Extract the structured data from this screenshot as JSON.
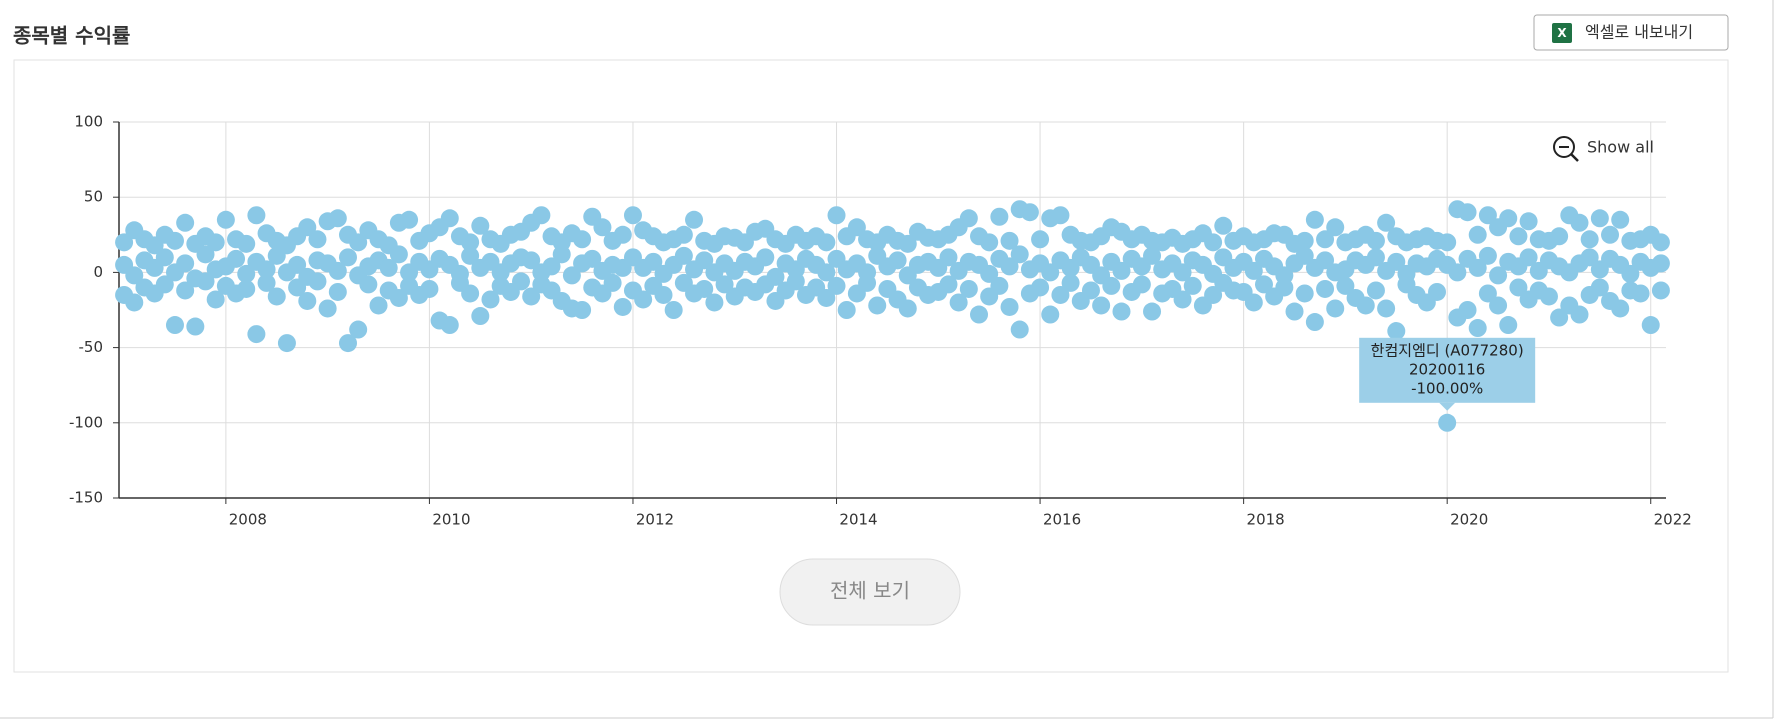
{
  "header": {
    "title": "종목별 수익률",
    "export_button": "엑셀로 내보내기"
  },
  "chart_data": {
    "type": "scatter",
    "x": [
      2007,
      2007.1,
      2007.2,
      2007.3,
      2007.4,
      2007.5,
      2007.6,
      2007.7,
      2007.8,
      2007.9,
      2008,
      2008.1,
      2008.2,
      2008.3,
      2008.4,
      2008.5,
      2008.6,
      2008.7,
      2008.8,
      2008.9,
      2009,
      2009.1,
      2009.2,
      2009.3,
      2009.4,
      2009.5,
      2009.6,
      2009.7,
      2009.8,
      2009.9,
      2010,
      2010.1,
      2010.2,
      2010.3,
      2010.4,
      2010.5,
      2010.6,
      2010.7,
      2010.8,
      2010.9,
      2011,
      2011.1,
      2011.2,
      2011.3,
      2011.4,
      2011.5,
      2011.6,
      2011.7,
      2011.8,
      2011.9,
      2012,
      2012.1,
      2012.2,
      2012.3,
      2012.4,
      2012.5,
      2012.6,
      2012.7,
      2012.8,
      2012.9,
      2013,
      2013.1,
      2013.2,
      2013.3,
      2013.4,
      2013.5,
      2013.6,
      2013.7,
      2013.8,
      2013.9,
      2014,
      2014.1,
      2014.2,
      2014.3,
      2014.4,
      2014.5,
      2014.6,
      2014.7,
      2014.8,
      2014.9,
      2015,
      2015.1,
      2015.2,
      2015.3,
      2015.4,
      2015.5,
      2015.6,
      2015.7,
      2015.8,
      2015.9,
      2016,
      2016.1,
      2016.2,
      2016.3,
      2016.4,
      2016.5,
      2016.6,
      2016.7,
      2016.8,
      2016.9,
      2017,
      2017.1,
      2017.2,
      2017.3,
      2017.4,
      2017.5,
      2017.6,
      2017.7,
      2017.8,
      2017.9,
      2018,
      2018.1,
      2018.2,
      2018.3,
      2018.4,
      2018.5,
      2018.6,
      2018.7,
      2018.8,
      2018.9,
      2019,
      2019.1,
      2019.2,
      2019.3,
      2019.4,
      2019.5,
      2019.6,
      2019.7,
      2019.8,
      2019.9,
      2020,
      2020.1,
      2020.2,
      2020.3,
      2020.4,
      2020.5,
      2020.6,
      2020.7,
      2020.8,
      2020.9,
      2021,
      2021.1,
      2021.2,
      2021.3,
      2021.4,
      2021.5,
      2021.6,
      2021.7,
      2021.8,
      2021.9,
      2022,
      2022.1
    ],
    "series": [
      {
        "color": "#8ac8e6",
        "values": [
          20,
          28,
          22,
          18,
          25,
          21,
          33,
          19,
          24,
          20,
          35,
          22,
          19,
          38,
          26,
          21,
          18,
          24,
          30,
          22,
          34,
          36,
          25,
          20,
          28,
          22,
          18,
          33,
          35,
          21,
          26,
          30,
          36,
          24,
          20,
          31,
          22,
          19,
          25,
          27,
          33,
          38,
          24,
          20,
          26,
          22,
          37,
          30,
          21,
          25,
          38,
          28,
          24,
          20,
          22,
          25,
          35,
          21,
          19,
          24,
          23,
          20,
          27,
          29,
          22,
          19,
          25,
          21,
          24,
          20,
          38,
          24,
          30,
          22,
          20,
          25,
          21,
          19,
          27,
          23,
          22,
          25,
          30,
          36,
          24,
          20,
          37,
          21,
          42,
          40,
          22,
          36,
          38,
          25,
          21,
          20,
          24,
          30,
          27,
          22,
          25,
          21,
          20,
          23,
          19,
          22,
          26,
          20,
          31,
          21,
          24,
          20,
          22,
          26,
          25,
          19,
          21,
          35,
          22,
          30,
          20,
          22,
          25,
          21,
          33,
          24,
          20,
          22,
          24,
          21,
          20,
          42,
          40,
          25,
          38,
          30,
          36,
          24,
          34,
          22,
          21,
          24,
          38,
          33,
          22,
          36,
          25,
          35,
          21,
          22,
          25,
          20
        ]
      },
      {
        "color": "#8ac8e6",
        "values": [
          5,
          -2,
          8,
          3,
          10,
          0,
          6,
          -4,
          12,
          2,
          4,
          9,
          -1,
          7,
          2,
          11,
          0,
          5,
          -3,
          8,
          6,
          1,
          10,
          -2,
          4,
          8,
          3,
          12,
          0,
          7,
          2,
          9,
          5,
          -1,
          11,
          3,
          7,
          0,
          6,
          10,
          8,
          0,
          4,
          12,
          -2,
          6,
          9,
          1,
          5,
          3,
          10,
          3,
          7,
          -1,
          5,
          11,
          2,
          8,
          0,
          6,
          1,
          7,
          4,
          10,
          -3,
          6,
          2,
          9,
          5,
          0,
          9,
          2,
          6,
          0,
          11,
          4,
          8,
          -2,
          5,
          7,
          3,
          10,
          1,
          7,
          5,
          -1,
          9,
          4,
          12,
          2,
          6,
          0,
          8,
          3,
          10,
          5,
          -2,
          7,
          1,
          9,
          4,
          11,
          2,
          6,
          0,
          8,
          5,
          -1,
          10,
          3,
          7,
          1,
          9,
          4,
          -2,
          6,
          11,
          3,
          8,
          0,
          2,
          8,
          5,
          10,
          1,
          7,
          -1,
          6,
          4,
          9,
          5,
          0,
          9,
          3,
          11,
          -2,
          7,
          4,
          10,
          1,
          8,
          4,
          0,
          6,
          10,
          2,
          9,
          5,
          -1,
          7,
          3,
          6
        ]
      },
      {
        "color": "#8ac8e6",
        "values": [
          -15,
          -20,
          -10,
          -14,
          -8,
          -35,
          -12,
          -36,
          -6,
          -18,
          -9,
          -14,
          -11,
          -41,
          -7,
          -16,
          -47,
          -10,
          -19,
          -6,
          -24,
          -13,
          -47,
          -38,
          -8,
          -22,
          -12,
          -17,
          -9,
          -15,
          -11,
          -32,
          -35,
          -7,
          -14,
          -29,
          -18,
          -9,
          -13,
          -6,
          -16,
          -8,
          -12,
          -19,
          -24,
          -25,
          -10,
          -14,
          -7,
          -23,
          -12,
          -18,
          -9,
          -15,
          -25,
          -7,
          -14,
          -11,
          -20,
          -8,
          -16,
          -10,
          -13,
          -8,
          -19,
          -12,
          -6,
          -15,
          -10,
          -17,
          -9,
          -25,
          -14,
          -7,
          -22,
          -11,
          -18,
          -24,
          -10,
          -15,
          -13,
          -8,
          -20,
          -11,
          -28,
          -16,
          -9,
          -23,
          -38,
          -14,
          -10,
          -28,
          -15,
          -7,
          -19,
          -12,
          -22,
          -9,
          -26,
          -13,
          -8,
          -26,
          -14,
          -11,
          -18,
          -9,
          -22,
          -15,
          -7,
          -12,
          -13,
          -20,
          -8,
          -16,
          -10,
          -26,
          -14,
          -33,
          -11,
          -24,
          -9,
          -17,
          -22,
          -12,
          -24,
          -39,
          -8,
          -15,
          -20,
          -13,
          -100,
          -30,
          -25,
          -37,
          -14,
          -22,
          -35,
          -10,
          -18,
          -12,
          -16,
          -30,
          -22,
          -28,
          -15,
          -10,
          -19,
          -24,
          -12,
          -14,
          -35,
          -12
        ]
      }
    ],
    "xlim": [
      2006.95,
      2022.15
    ],
    "xticks": [
      2008,
      2010,
      2012,
      2014,
      2016,
      2018,
      2020,
      2022
    ],
    "ylim": [
      -150,
      100
    ],
    "yticks": [
      -150,
      -100,
      -50,
      0,
      50,
      100
    ],
    "grid": true,
    "tooltip": {
      "lines": [
        "한컴지엠디 (A077280)",
        "20200116",
        "-100.00%"
      ]
    },
    "show_all": "Show all"
  },
  "footer": {
    "view_all_button": "전체 보기"
  }
}
